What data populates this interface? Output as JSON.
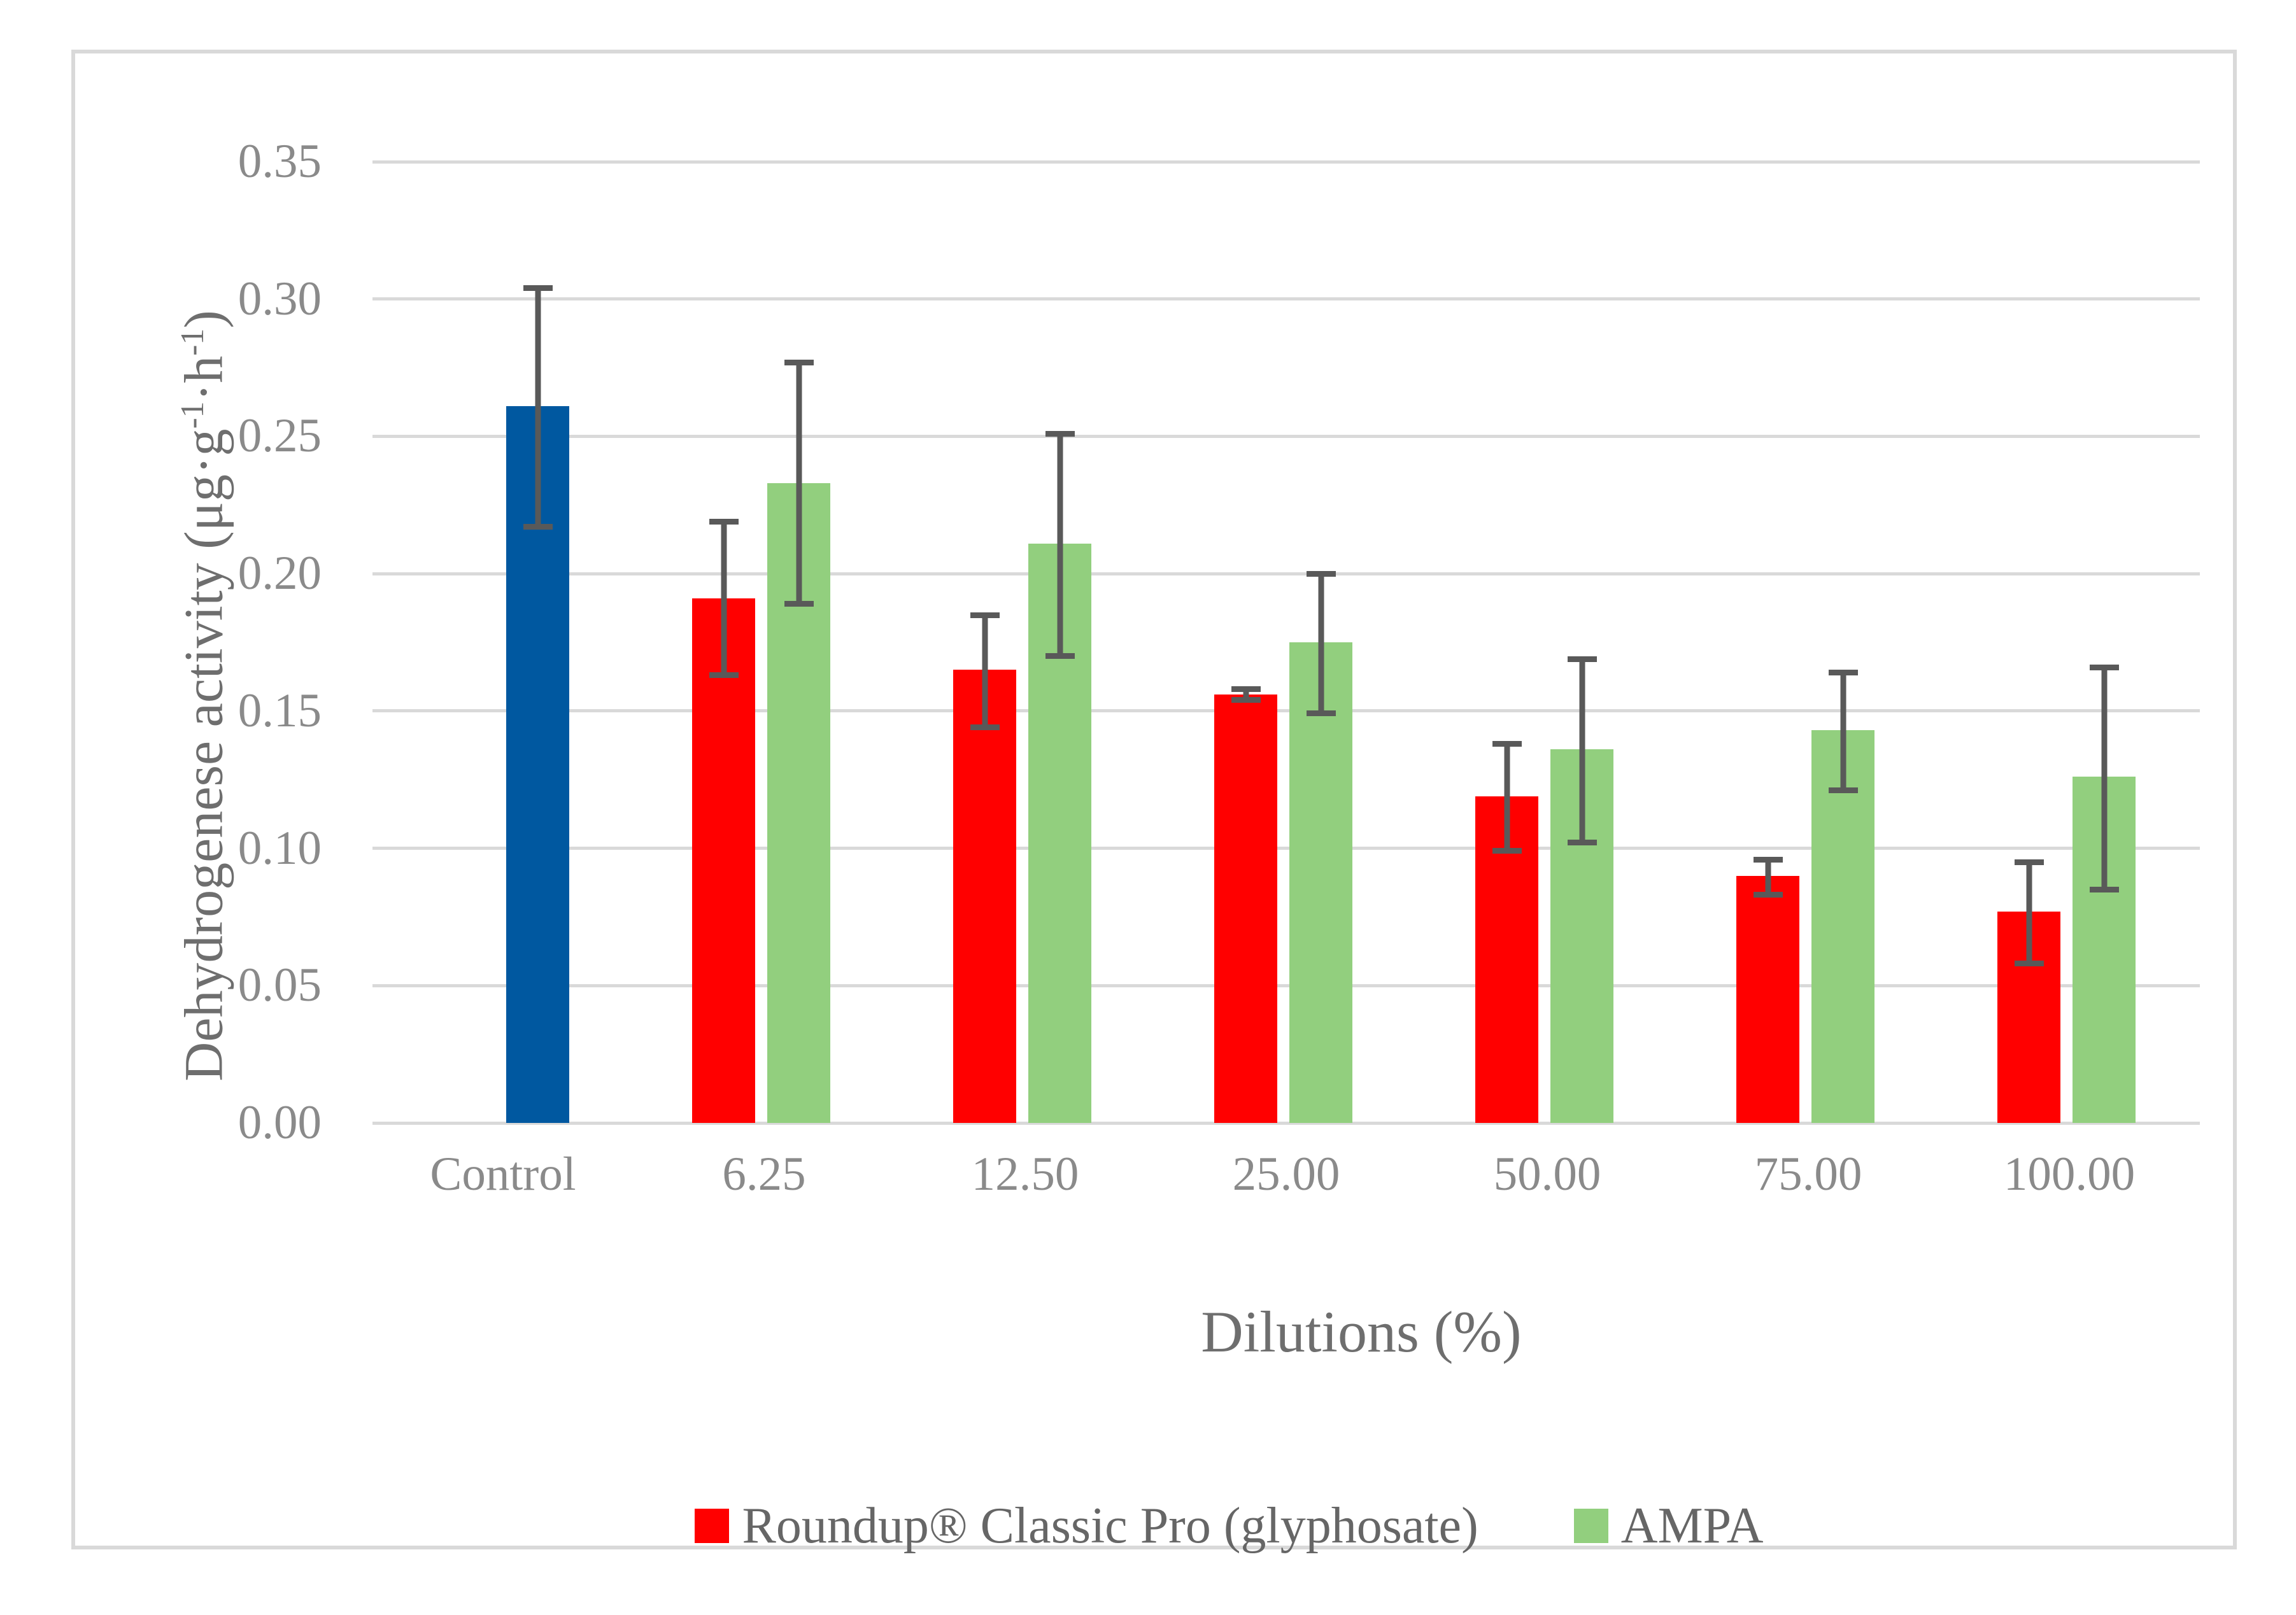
{
  "y_axis": {
    "title_parts": [
      "Dehydrogenese activity (μg·g",
      "-1",
      "·h",
      "-1",
      ")"
    ],
    "ticks": [
      "0.00",
      "0.05",
      "0.10",
      "0.15",
      "0.20",
      "0.25",
      "0.30",
      "0.35"
    ],
    "max": 0.35,
    "tick_step": 0.05
  },
  "x_axis": {
    "title": "Dilutions (%)",
    "categories": [
      "Control",
      "6.25",
      "12.50",
      "25.00",
      "50.00",
      "75.00",
      "100.00"
    ]
  },
  "legend": [
    {
      "label": "Roundup® Classic Pro (glyphosate)",
      "color": "#FF0000"
    },
    {
      "label": "AMPA",
      "color": "#92CF7E"
    }
  ],
  "colors": {
    "control_bar": "#0058A0",
    "roundup_bar": "#FF0000",
    "ampa_bar": "#92CF7E",
    "error_bar": "#595959",
    "gridline": "#D9D9D9",
    "frame_border": "#D9D9D9",
    "tick_text": "#8A8A8A",
    "title_text": "#6E6E6E"
  },
  "chart_data": {
    "type": "bar",
    "title": "",
    "xlabel": "Dilutions (%)",
    "ylabel": "Dehydrogenese activity (μg·g-1·h-1)",
    "ylim": [
      0,
      0.35
    ],
    "grid": true,
    "legend_position": "bottom",
    "categories": [
      "Control",
      "6.25",
      "12.50",
      "25.00",
      "50.00",
      "75.00",
      "100.00"
    ],
    "series": [
      {
        "name": "Control",
        "color": "#0058A0",
        "slot": 1,
        "values": [
          0.261,
          null,
          null,
          null,
          null,
          null,
          null
        ],
        "err_lo": [
          0.216,
          null,
          null,
          null,
          null,
          null,
          null
        ],
        "err_hi": [
          0.305,
          null,
          null,
          null,
          null,
          null,
          null
        ]
      },
      {
        "name": "Roundup® Classic Pro (glyphosate)",
        "color": "#FF0000",
        "slot": 0,
        "values": [
          null,
          0.191,
          0.165,
          0.156,
          0.119,
          0.09,
          0.077
        ],
        "err_lo": [
          null,
          0.162,
          0.143,
          0.153,
          0.098,
          0.082,
          0.057
        ],
        "err_hi": [
          null,
          0.22,
          0.186,
          0.159,
          0.139,
          0.097,
          0.096
        ]
      },
      {
        "name": "AMPA",
        "color": "#92CF7E",
        "slot": 1,
        "values": [
          null,
          0.233,
          0.211,
          0.175,
          0.136,
          0.143,
          0.126
        ],
        "err_lo": [
          null,
          0.188,
          0.169,
          0.148,
          0.101,
          0.12,
          0.084
        ],
        "err_hi": [
          null,
          0.278,
          0.252,
          0.201,
          0.17,
          0.165,
          0.167
        ]
      }
    ]
  }
}
